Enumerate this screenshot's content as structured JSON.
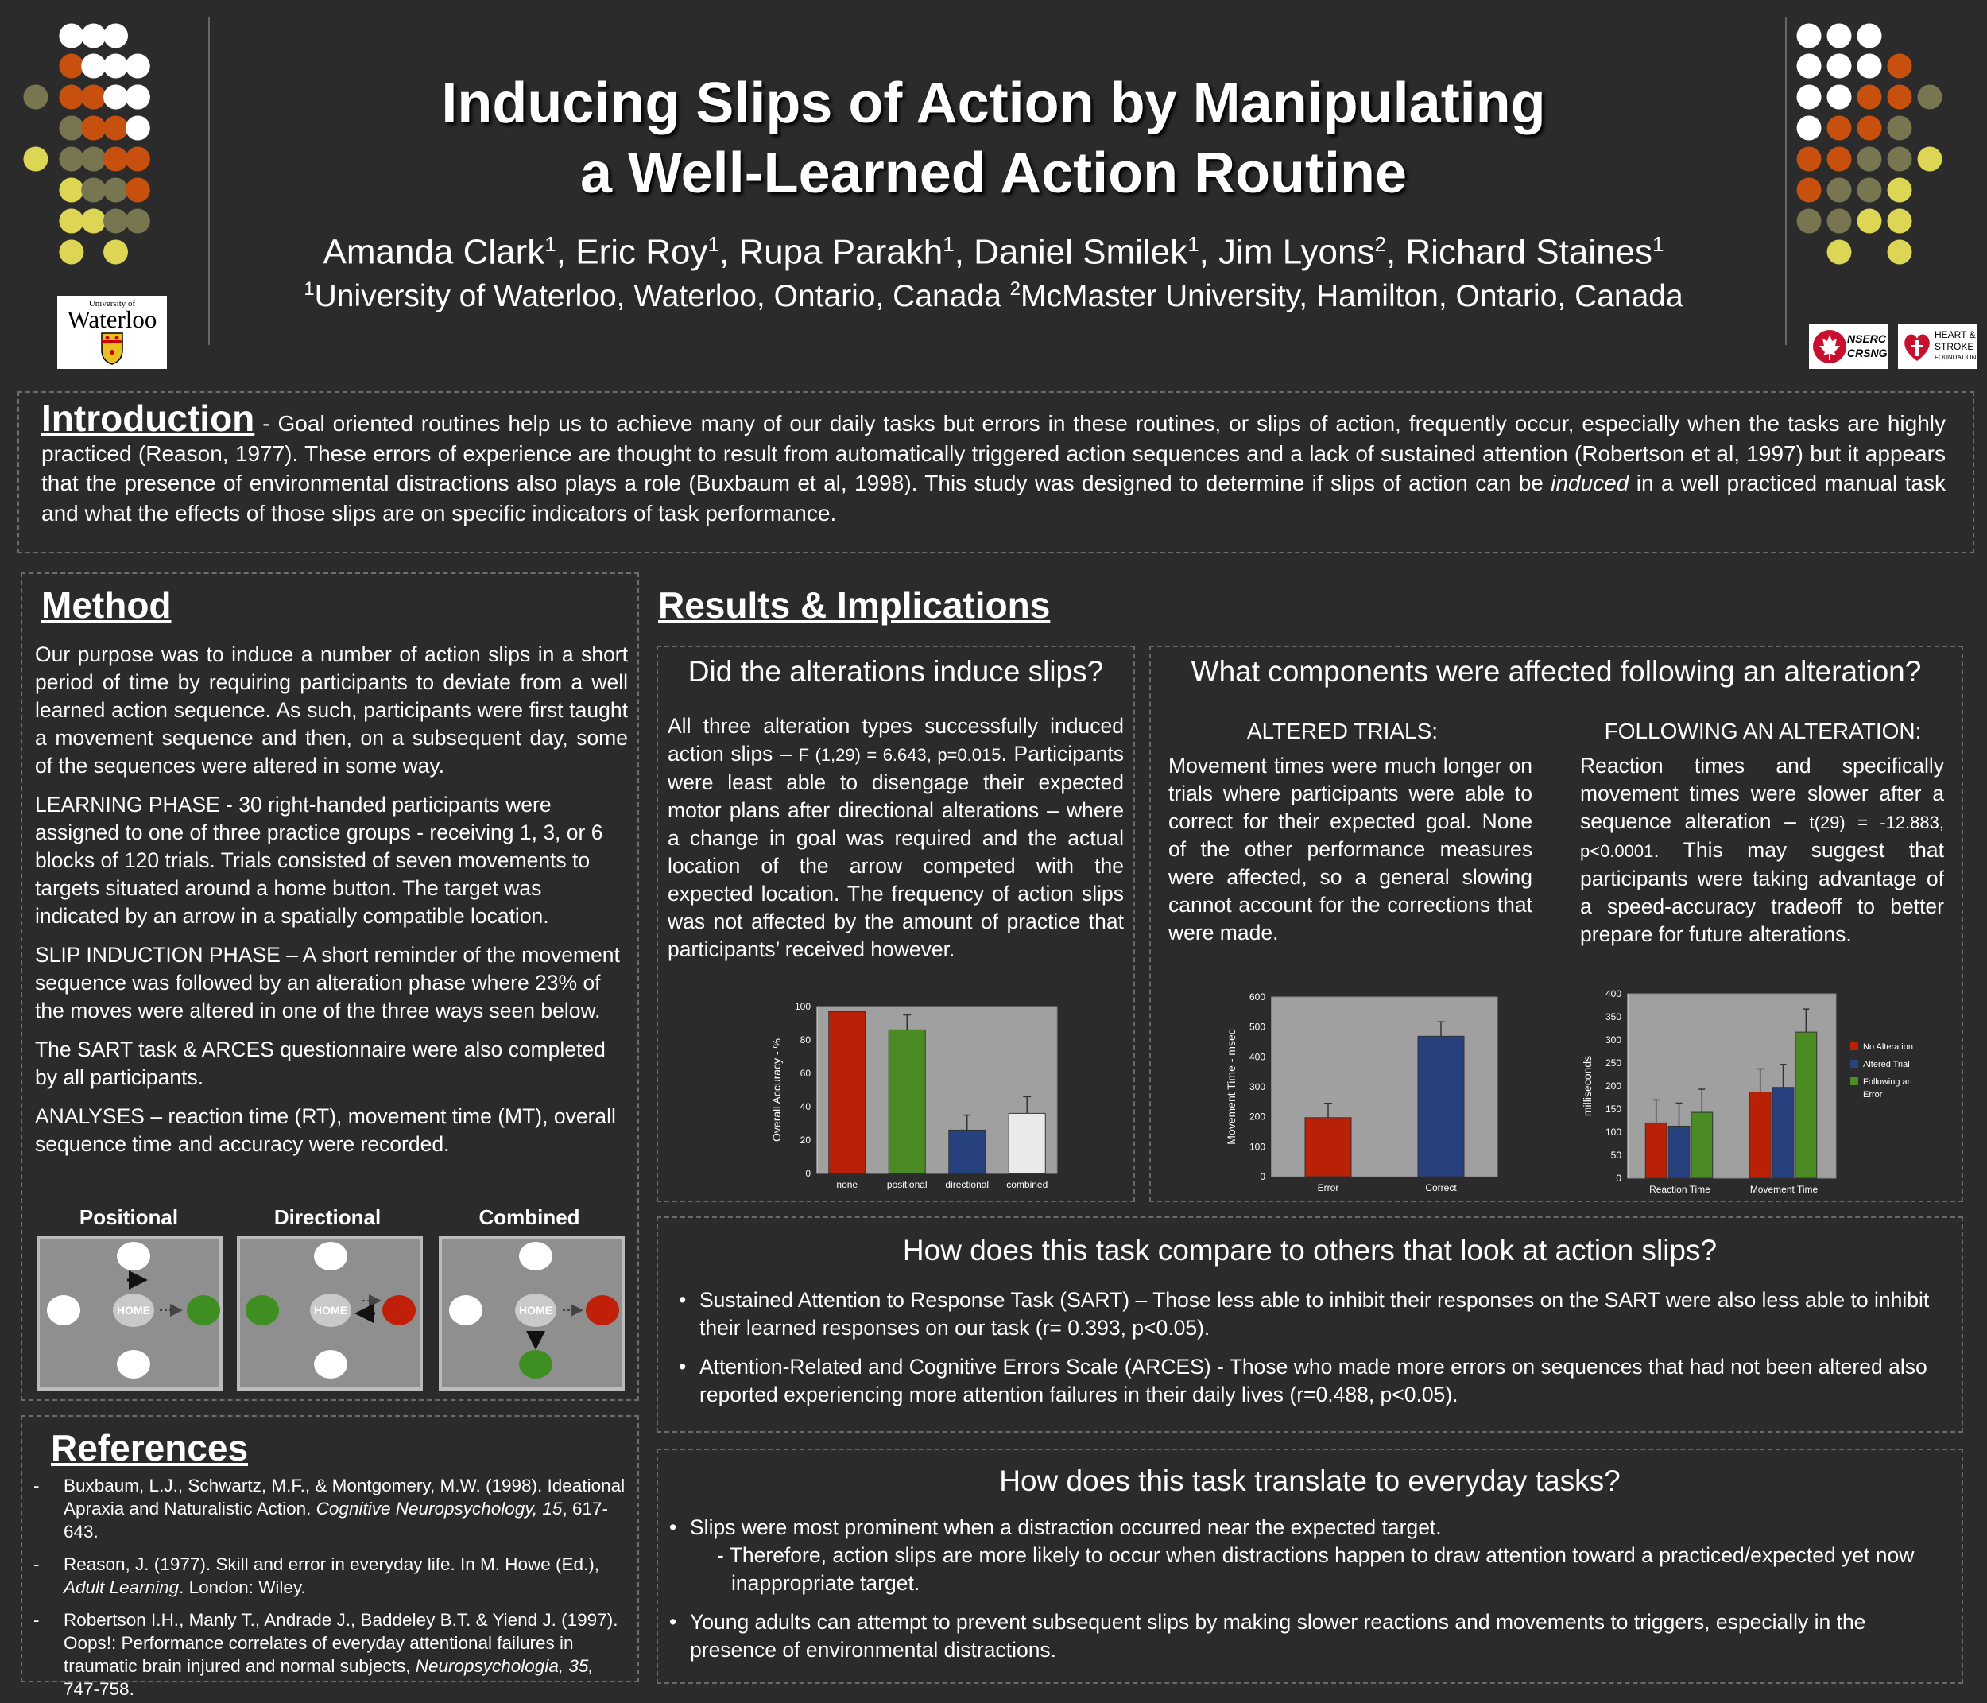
{
  "header": {
    "title_line1": "Inducing Slips of Action by Manipulating",
    "title_line2": "a Well-Learned Action Routine",
    "authors": [
      {
        "name": "Amanda Clark",
        "aff": "1"
      },
      {
        "name": "Eric Roy",
        "aff": "1"
      },
      {
        "name": "Rupa Parakh",
        "aff": "1"
      },
      {
        "name": "Daniel Smilek",
        "aff": "1"
      },
      {
        "name": "Jim Lyons",
        "aff": "2"
      },
      {
        "name": "Richard Staines",
        "aff": "1"
      }
    ],
    "sep": ", ",
    "affiliations": [
      {
        "num": "1",
        "text": "University of Waterloo, Waterloo, Ontario, Canada "
      },
      {
        "num": "2",
        "text": "McMaster University, Hamilton, Ontario, Canada"
      }
    ],
    "logo_waterloo_small": "University of",
    "logo_waterloo_big": "Waterloo",
    "logo_nserc_1": "NSERC",
    "logo_nserc_2": "CRSNG",
    "logo_heart_1": "HEART &",
    "logo_heart_2": "STROKE",
    "logo_heart_3": "FOUNDATION"
  },
  "colors": {
    "background": "#2b2b2b",
    "orange": "#c8500f",
    "olive": "#777651",
    "yellow": "#dcd654",
    "white": "#ffffff",
    "bar_red": "#b82106",
    "bar_green": "#4a8c23",
    "bar_blue": "#27417f",
    "bar_white": "#eaeaea",
    "plot_bg": "#a0a0a0"
  },
  "introduction": {
    "heading": "Introduction",
    "text_a": " - Goal oriented routines help us to achieve many of our daily tasks but errors in these routines, or slips of action, frequently occur, especially when the tasks are highly practiced (Reason, 1977). These errors of experience are thought to result from automatically triggered action sequences and a lack of sustained attention (Robertson et al, 1997) but it appears that the presence of environmental distractions also plays a role (Buxbaum et al, 1998). This study was designed to determine if slips of action can be ",
    "text_italic": "induced",
    "text_b": " in a well practiced manual task and what the effects of those slips are on specific indicators of task performance."
  },
  "method": {
    "heading": "Method",
    "para1": "Our purpose was to induce a number of action slips in a short period of time by requiring participants to deviate from a well learned action sequence.  As such, participants were first taught a movement sequence and then,    on a subsequent day, some of the sequences were altered in some way.",
    "learning_label": "LEARNING PHASE",
    "learning_text": " - 30 right-handed participants were assigned to one of three practice groups - receiving 1, 3, or 6 blocks of 120 trials.  Trials consisted of seven movements to targets situated around a home button.  The target was indicated by an arrow in a spatially compatible location.",
    "slip_label": "SLIP INDUCTION PHASE",
    "slip_text": " – A short reminder of the movement sequence was followed by an alteration phase where 23% of the moves were altered in one of the three ways seen below.",
    "sart_text": "The SART task & ARCES questionnaire were also completed by all participants.",
    "analyses_label": "ANALYSES",
    "analyses_text": " – reaction time (RT), movement time (MT), overall sequence time and accuracy were recorded.",
    "diagrams": [
      {
        "label": "Positional",
        "home": "HOME"
      },
      {
        "label": "Directional",
        "home": "HOME"
      },
      {
        "label": "Combined",
        "home": "HOME"
      }
    ]
  },
  "references": {
    "heading": "References",
    "items": [
      {
        "pre": "Buxbaum, L.J., Schwartz, M.F., & Montgomery, M.W.  (1998). Ideational Apraxia and Naturalistic Action.  ",
        "italic": "Cognitive Neuropsychology, 15",
        "post": ", 617-643."
      },
      {
        "pre": "Reason, J. (1977). Skill and error in everyday life. In M. Howe (Ed.), ",
        "italic": "Adult Learning",
        "post": ". London: Wiley."
      },
      {
        "pre": "Robertson I.H., Manly T., Andrade J., Baddeley B.T. & Yiend J. (1997). Oops!: Performance correlates of everyday attentional failures in traumatic brain injured and normal  subjects, ",
        "italic": "Neuropsychologia, 35,",
        "post": " 747-758."
      }
    ]
  },
  "results": {
    "heading": "Results & Implications",
    "slips": {
      "heading": "Did the alterations induce slips?",
      "text_a": "All three alteration types successfully induced action slips – ",
      "stat": "F (1,29) = 6.643, p=0.015",
      "text_b": ". Participants were least able to disengage their expected motor plans after directional alterations – where a change in goal was required and the actual location of the arrow competed with the expected location.    The frequency of action slips was not affected by the amount of practice that participants’ received however."
    },
    "components": {
      "heading": "What components were affected following an alteration?",
      "altered_heading": "ALTERED TRIALS:",
      "altered_text": "Movement times were much longer on trials where participants were able   to correct for their expected goal.  None of the other performance measures were affected, so a general slowing cannot account for the corrections that were made.",
      "following_heading": "FOLLOWING AN ALTERATION:",
      "following_text_a": "Reaction times and specifically movement times were slower after a sequence alteration – ",
      "following_stat": "t(29) = -12.883, p<0.0001",
      "following_text_b": ".  This may suggest that participants were taking advantage of a speed-accuracy tradeoff to better prepare for future alterations."
    },
    "compare": {
      "heading": "How does this task compare to others that look at action slips?",
      "bullets": [
        "Sustained Attention to Response Task (SART) – Those less able to inhibit their responses on the SART were also less able to inhibit their learned responses on our task  (r= 0.393, p<0.05).",
        "Attention-Related and Cognitive Errors Scale (ARCES) - Those who made more errors on sequences that had not been altered also reported experiencing more attention failures in their daily lives (r=0.488, p<0.05)."
      ]
    },
    "everyday": {
      "heading": "How does this task translate to everyday tasks?",
      "bullet1": "Slips were most prominent when a distraction occurred near the expected target.",
      "sub1": "- Therefore, action slips are more likely to occur when distractions happen to draw attention toward a practiced/expected yet now inappropriate target.",
      "bullet2": "Young adults can attempt to prevent subsequent slips by making slower reactions and movements to triggers, especially in the presence of environmental distractions."
    }
  },
  "chart_data": [
    {
      "type": "bar",
      "id": "accuracy",
      "categories": [
        "none",
        "positional",
        "directional",
        "combined"
      ],
      "values": [
        97,
        86,
        26,
        36
      ],
      "errors": [
        0,
        9,
        9,
        10
      ],
      "colors": [
        "#b82106",
        "#4a8c23",
        "#27417f",
        "#eaeaea"
      ],
      "ylabel": "Overall Accuracy - %",
      "ylim": [
        0,
        100
      ],
      "yticks": [
        0,
        20,
        40,
        60,
        80,
        100
      ]
    },
    {
      "type": "bar",
      "id": "movement_time",
      "categories": [
        "Error",
        "Correct"
      ],
      "values": [
        197,
        469
      ],
      "errors": [
        48,
        48
      ],
      "colors": [
        "#b82106",
        "#27417f"
      ],
      "ylabel": "Movement Time - msec",
      "ylim": [
        0,
        600
      ],
      "yticks": [
        0,
        100,
        200,
        300,
        400,
        500,
        600
      ]
    },
    {
      "type": "bar",
      "id": "rt_mt",
      "categories": [
        "Reaction Time",
        "Movement Time"
      ],
      "series": [
        {
          "name": "No Alteration",
          "values": [
            120,
            187
          ],
          "errors": [
            50,
            50
          ],
          "color": "#b82106"
        },
        {
          "name": "Altered Trial",
          "values": [
            113,
            197
          ],
          "errors": [
            50,
            50
          ],
          "color": "#27417f"
        },
        {
          "name": "Following an Error",
          "values": [
            143,
            317
          ],
          "errors": [
            50,
            50
          ],
          "color": "#4a8c23"
        }
      ],
      "ylabel": "milliseconds",
      "ylim": [
        0,
        400
      ],
      "yticks": [
        0,
        50,
        100,
        150,
        200,
        250,
        300,
        350,
        400
      ],
      "legend": "right"
    }
  ]
}
